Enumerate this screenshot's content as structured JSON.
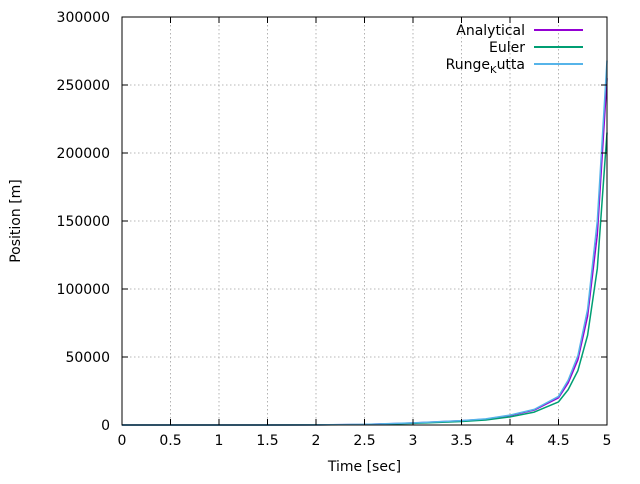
{
  "chart_data": {
    "type": "line",
    "title": "",
    "xlabel": "Time [sec]",
    "ylabel": "Position [m]",
    "xlim": [
      0,
      5
    ],
    "ylim": [
      0,
      300000
    ],
    "grid": true,
    "legend_position": "top-right",
    "x_ticks": [
      "0",
      "0.5",
      "1",
      "1.5",
      "2",
      "2.5",
      "3",
      "3.5",
      "4",
      "4.5",
      "5"
    ],
    "y_ticks": [
      "0",
      "50000",
      "100000",
      "150000",
      "200000",
      "250000",
      "300000"
    ],
    "series": [
      {
        "name": "Analytical",
        "color": "#9400d3",
        "x": [
          0,
          0.5,
          1,
          1.5,
          2,
          2.5,
          3,
          3.5,
          3.75,
          4,
          4.25,
          4.5,
          4.6,
          4.7,
          4.8,
          4.9,
          5
        ],
        "y": [
          0,
          2,
          8,
          30,
          110,
          400,
          1500,
          3100,
          4300,
          7000,
          11000,
          20000,
          31000,
          48000,
          80000,
          140000,
          255000
        ]
      },
      {
        "name": "Euler",
        "color": "#009e73",
        "x": [
          0,
          0.5,
          1,
          1.5,
          2,
          2.5,
          3,
          3.5,
          3.75,
          4,
          4.25,
          4.5,
          4.6,
          4.7,
          4.8,
          4.9,
          5
        ],
        "y": [
          0,
          1,
          5,
          20,
          80,
          300,
          1200,
          2600,
          3700,
          6000,
          9500,
          17000,
          26000,
          40000,
          66000,
          115000,
          215000
        ]
      },
      {
        "name": "Runge_Kutta",
        "legend_base": "Runge",
        "legend_sub": "K",
        "legend_rest": "utta",
        "color": "#56b4e9",
        "x": [
          0,
          0.5,
          1,
          1.5,
          2,
          2.5,
          3,
          3.5,
          3.75,
          4,
          4.25,
          4.5,
          4.6,
          4.7,
          4.8,
          4.9,
          5
        ],
        "y": [
          0,
          2,
          9,
          32,
          120,
          420,
          1550,
          3200,
          4500,
          7300,
          11500,
          21000,
          33000,
          51000,
          85000,
          150000,
          268000
        ]
      }
    ]
  }
}
